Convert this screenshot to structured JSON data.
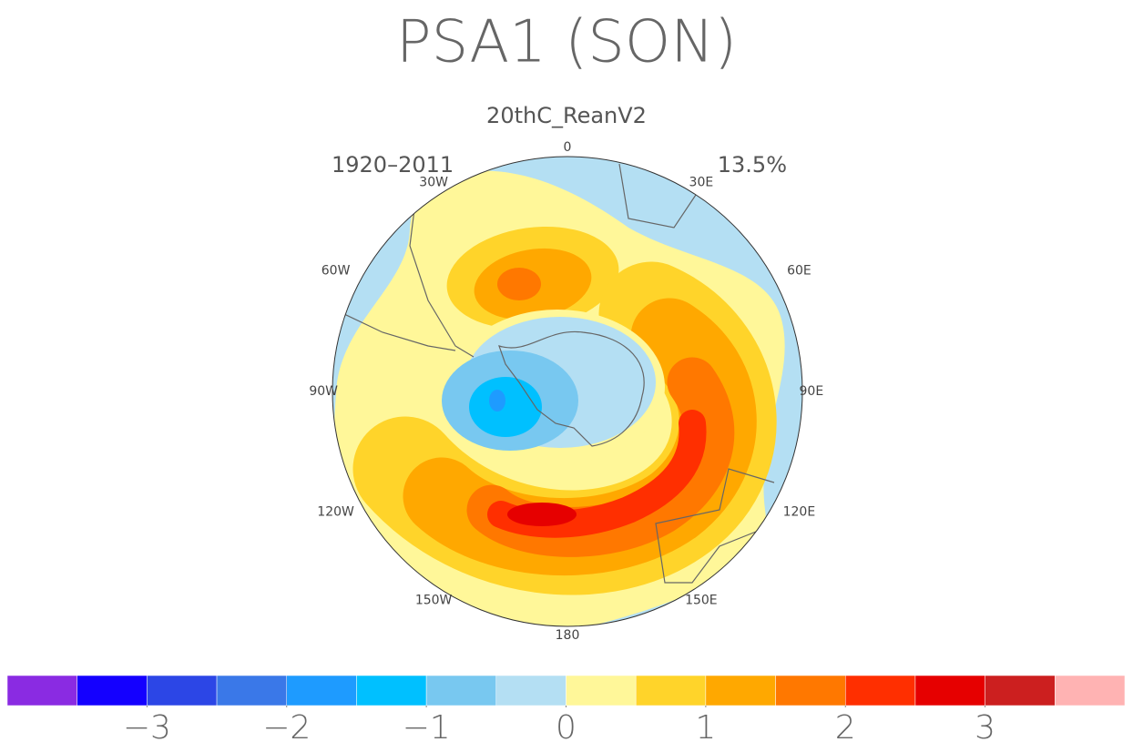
{
  "title": "PSA1 (SON)",
  "subtitle": "20thC_ReanV2",
  "period": "1920–2011",
  "variance": "13.5%",
  "longitude_labels": [
    "0",
    "30E",
    "60E",
    "90E",
    "120E",
    "150E",
    "180",
    "150W",
    "120W",
    "90W",
    "60W",
    "30W"
  ],
  "colorbar": {
    "range": [
      -4,
      4
    ],
    "colors": [
      "#8a2be2",
      "#1400ff",
      "#2c46e6",
      "#3a78e8",
      "#1e9bff",
      "#00c0ff",
      "#78c8f0",
      "#b4dff3",
      "#fff799",
      "#ffd42a",
      "#ffa800",
      "#ff7800",
      "#ff2f00",
      "#e60000",
      "#cc1f1f",
      "#ffb3b3"
    ],
    "ticks": [
      {
        "value": -3,
        "label": "−3"
      },
      {
        "value": -2,
        "label": "−2"
      },
      {
        "value": -1,
        "label": "−1"
      },
      0,
      1,
      2,
      3
    ]
  }
}
